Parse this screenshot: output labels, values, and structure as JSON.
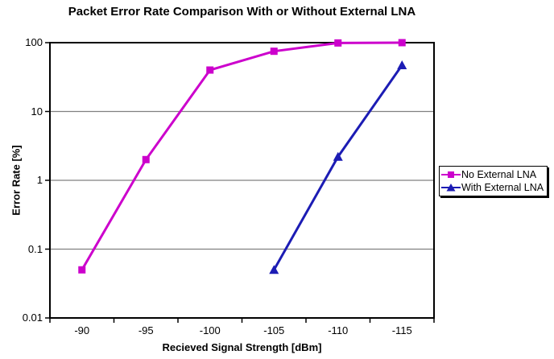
{
  "chart_data": {
    "type": "line",
    "title": "Packet Error Rate Comparison With or Without External LNA",
    "xlabel": "Recieved Signal Strength [dBm]",
    "ylabel": "Error Rate [%]",
    "categories": [
      "-90",
      "-95",
      "-100",
      "-105",
      "-110",
      "-115"
    ],
    "x_axis": {
      "tick_labels": [
        "-90",
        "-95",
        "-100",
        "-105",
        "-110",
        "-115"
      ]
    },
    "y_axis": {
      "scale": "log",
      "min": 0.01,
      "max": 100,
      "tick_labels": [
        "100",
        "10",
        "1",
        "0.1",
        "0.01"
      ],
      "tick_values": [
        100,
        10,
        1,
        0.1,
        0.01
      ]
    },
    "grid": "horizontal",
    "legend_position": "right",
    "series": [
      {
        "name": "No External LNA",
        "color": "#CC00CC",
        "marker": "square",
        "values": [
          0.05,
          2,
          40,
          75,
          99,
          100
        ]
      },
      {
        "name": "With External LNA",
        "color": "#1C1CB4",
        "marker": "triangle-up",
        "values": [
          null,
          null,
          null,
          0.05,
          2.2,
          47
        ]
      }
    ],
    "colors": {
      "gridline": "#808080",
      "axis": "#000000",
      "background": "#ffffff"
    }
  }
}
